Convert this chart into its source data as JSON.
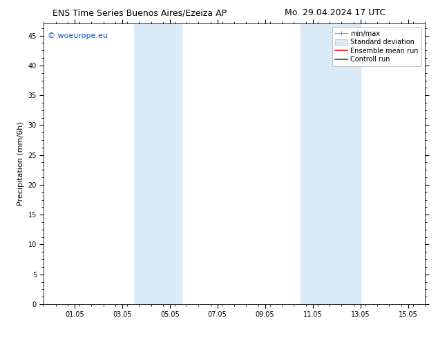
{
  "title_left": "ENS Time Series Buenos Aires/Ezeiza AP",
  "title_right": "Mo. 29.04.2024 17 UTC",
  "ylabel": "Precipitation (mm/6h)",
  "ylim": [
    0,
    47
  ],
  "xlim": [
    0.0,
    16.0
  ],
  "xtick_positions": [
    1.29,
    3.29,
    5.29,
    7.29,
    9.29,
    11.29,
    13.29,
    15.29
  ],
  "xtick_labels": [
    "01.05",
    "03.05",
    "05.05",
    "07.05",
    "09.05",
    "11.05",
    "13.05",
    "15.05"
  ],
  "ytick_positions": [
    0,
    5,
    10,
    15,
    20,
    25,
    30,
    35,
    40,
    45
  ],
  "shaded_regions": [
    {
      "x_start": 3.79,
      "x_end": 5.79,
      "color": "#daeaf7"
    },
    {
      "x_start": 10.79,
      "x_end": 13.29,
      "color": "#daeaf7"
    }
  ],
  "background_color": "#ffffff",
  "watermark_text": "© woeurope.eu",
  "watermark_color": "#0055cc",
  "title_fontsize": 9,
  "axis_label_fontsize": 8,
  "tick_fontsize": 7,
  "legend_fontsize": 7
}
